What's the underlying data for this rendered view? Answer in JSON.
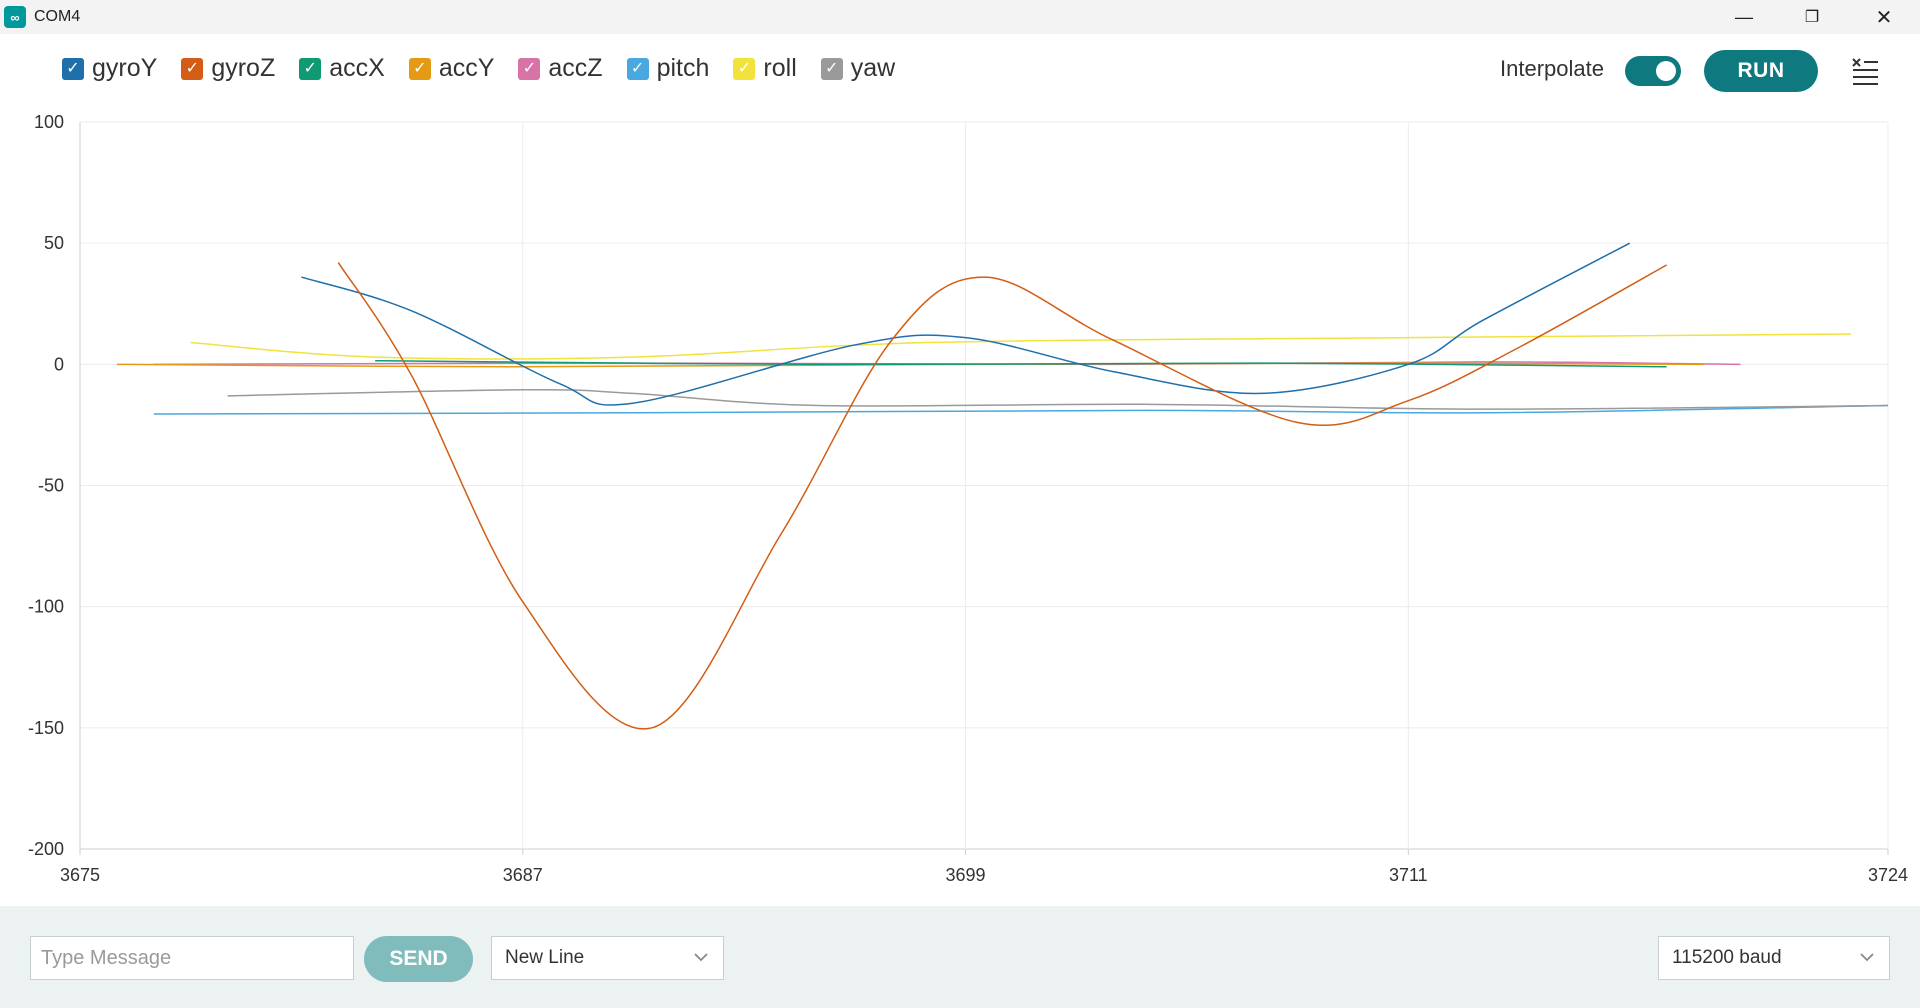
{
  "window": {
    "title": "COM4",
    "app_icon_glyph": "∞",
    "minimize_glyph": "—",
    "restore_glyph": "❐",
    "close_glyph": "✕"
  },
  "legend": [
    {
      "label": "gyroY",
      "color": "#1f6fab",
      "checked": true
    },
    {
      "label": "gyroZ",
      "color": "#d35d14",
      "checked": true
    },
    {
      "label": "accX",
      "color": "#0f9a73",
      "checked": true
    },
    {
      "label": "accY",
      "color": "#e59a16",
      "checked": true
    },
    {
      "label": "accZ",
      "color": "#d873a5",
      "checked": true
    },
    {
      "label": "pitch",
      "color": "#4aa8e0",
      "checked": true
    },
    {
      "label": "roll",
      "color": "#f1e33c",
      "checked": true
    },
    {
      "label": "yaw",
      "color": "#9a9a9a",
      "checked": true
    }
  ],
  "controls": {
    "interpolate_label": "Interpolate",
    "interpolate_on": true,
    "run_label": "RUN",
    "clear_icon": "clear-list-icon"
  },
  "chart_data": {
    "type": "line",
    "ylim": [
      -200,
      100
    ],
    "yticks": [
      "100",
      "50",
      "0",
      "-50",
      "-100",
      "-150",
      "-200"
    ],
    "xlim": [
      3675,
      3724
    ],
    "xticks": [
      "3675",
      "3687",
      "3699",
      "3711",
      "3724"
    ],
    "grid": true,
    "series": [
      {
        "name": "gyroY",
        "color": "#1f6fab",
        "x": [
          3681,
          3684,
          3688,
          3690,
          3696,
          3699,
          3703,
          3707,
          3711,
          3713,
          3717
        ],
        "y": [
          36,
          22,
          -8,
          -16,
          8,
          11,
          -3,
          -12,
          0,
          18,
          50
        ]
      },
      {
        "name": "gyroZ",
        "color": "#d35d14",
        "x": [
          3682,
          3684,
          3687,
          3690.5,
          3694,
          3697,
          3699.5,
          3703,
          3708,
          3711,
          3714,
          3718
        ],
        "y": [
          42,
          -5,
          -98,
          -150,
          -70,
          10,
          36,
          10,
          -24,
          -15,
          7,
          41
        ]
      },
      {
        "name": "accX",
        "color": "#0f9a73",
        "x": [
          3683,
          3695,
          3707,
          3718
        ],
        "y": [
          1.5,
          0,
          0.5,
          -1
        ]
      },
      {
        "name": "accY",
        "color": "#e59a16",
        "x": [
          3676,
          3687,
          3699,
          3711,
          3719
        ],
        "y": [
          0,
          -1,
          0,
          0.5,
          0
        ]
      },
      {
        "name": "accZ",
        "color": "#d873a5",
        "x": [
          3677,
          3690,
          3703,
          3713,
          3720
        ],
        "y": [
          0,
          0.5,
          0,
          1,
          0
        ]
      },
      {
        "name": "pitch",
        "color": "#4aa8e0",
        "x": [
          3677,
          3690,
          3704,
          3713,
          3724
        ],
        "y": [
          -20.5,
          -20,
          -19,
          -20,
          -17
        ]
      },
      {
        "name": "roll",
        "color": "#f1e33c",
        "x": [
          3678,
          3683,
          3690,
          3698,
          3711,
          3723
        ],
        "y": [
          9,
          3,
          3,
          9,
          11,
          12.5
        ]
      },
      {
        "name": "yaw",
        "color": "#9a9a9a",
        "x": [
          3679,
          3687,
          3690,
          3695,
          3704,
          3713,
          3724
        ],
        "y": [
          -13,
          -10.5,
          -12,
          -17,
          -16.5,
          -18.5,
          -17
        ]
      }
    ]
  },
  "bottom": {
    "message_placeholder": "Type Message",
    "send_label": "SEND",
    "line_ending": "New Line",
    "baud": "115200 baud"
  }
}
